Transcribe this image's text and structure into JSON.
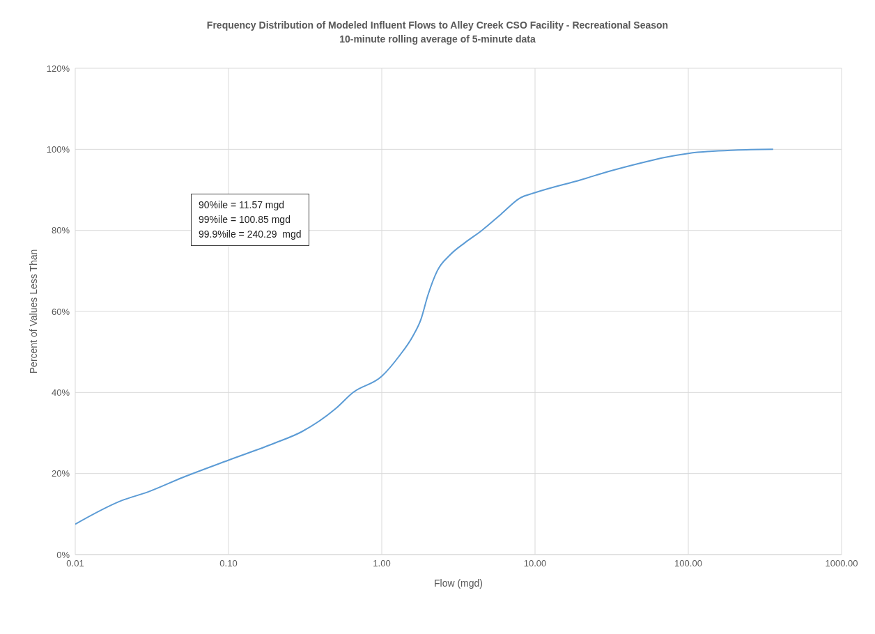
{
  "chart_data": {
    "type": "line",
    "title": "Frequency Distribution of Modeled Influent Flows to Alley Creek CSO Facility - Recreational Season",
    "subtitle": "10-minute rolling average of 5-minute data",
    "xlabel": "Flow (mgd)",
    "ylabel": "Percent of Values Less Than",
    "x": [
      0.01,
      0.02,
      0.03,
      0.05,
      0.1,
      0.2,
      0.3,
      0.5,
      0.65,
      1,
      1.3,
      1.6,
      1.8,
      2,
      2.3,
      2.8,
      3.5,
      4.5,
      6,
      8,
      10,
      20,
      30,
      50,
      70,
      100,
      200,
      358
    ],
    "series": [
      {
        "color": "#5b9bd5",
        "values": [
          7.5,
          13.3,
          15.5,
          19,
          23.3,
          27.5,
          30.3,
          36,
          40,
          44,
          49,
          54,
          58,
          64,
          70,
          74,
          77,
          80,
          84,
          88,
          89.3,
          92.5,
          94.5,
          96.7,
          98,
          99,
          99.8,
          100
        ]
      }
    ],
    "log": "x",
    "xlim": [
      0.01,
      1000
    ],
    "xticks": [
      {
        "value": 0.01,
        "label": "0.01"
      },
      {
        "value": 0.1,
        "label": "0.10"
      },
      {
        "value": 1,
        "label": "1.00"
      },
      {
        "value": 10,
        "label": "10.00"
      },
      {
        "value": 100,
        "label": "100.00"
      },
      {
        "value": 1000,
        "label": "1000.00"
      }
    ],
    "ylim": [
      0,
      120
    ],
    "yticks": [
      {
        "value": 0,
        "label": "0%"
      },
      {
        "value": 20,
        "label": "20%"
      },
      {
        "value": 40,
        "label": "40%"
      },
      {
        "value": 60,
        "label": "60%"
      },
      {
        "value": 80,
        "label": "80%"
      },
      {
        "value": 100,
        "label": "100%"
      },
      {
        "value": 120,
        "label": "120%"
      }
    ],
    "grid": true,
    "marker": "none",
    "line_style": "solid",
    "annotations": [
      "90%ile = 11.57 mgd",
      "99%ile = 100.85 mgd",
      "99.9%ile = 240.29  mgd"
    ]
  }
}
